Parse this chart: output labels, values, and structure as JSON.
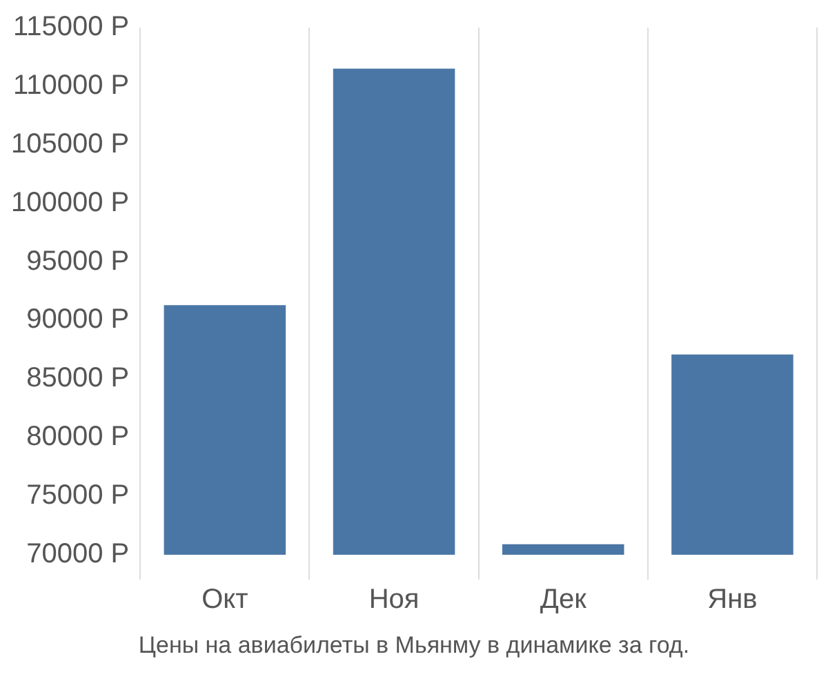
{
  "chart_data": {
    "type": "bar",
    "categories": [
      "Окт",
      "Ноя",
      "Дек",
      "Янв"
    ],
    "values": [
      91300,
      111500,
      70900,
      87100
    ],
    "color": "#4a76a5",
    "ylim": [
      70000,
      115000
    ],
    "yticks": [
      {
        "value": 70000,
        "label": "70000 Р"
      },
      {
        "value": 75000,
        "label": "75000 Р"
      },
      {
        "value": 80000,
        "label": "80000 Р"
      },
      {
        "value": 85000,
        "label": "85000 Р"
      },
      {
        "value": 90000,
        "label": "90000 Р"
      },
      {
        "value": 95000,
        "label": "95000 Р"
      },
      {
        "value": 100000,
        "label": "100000 Р"
      },
      {
        "value": 105000,
        "label": "105000 Р"
      },
      {
        "value": 110000,
        "label": "110000 Р"
      },
      {
        "value": 115000,
        "label": "115000 Р"
      }
    ],
    "grid": "x",
    "annotations": [
      "Цены на авиабилеты в Мьянму в динамике за год."
    ]
  }
}
